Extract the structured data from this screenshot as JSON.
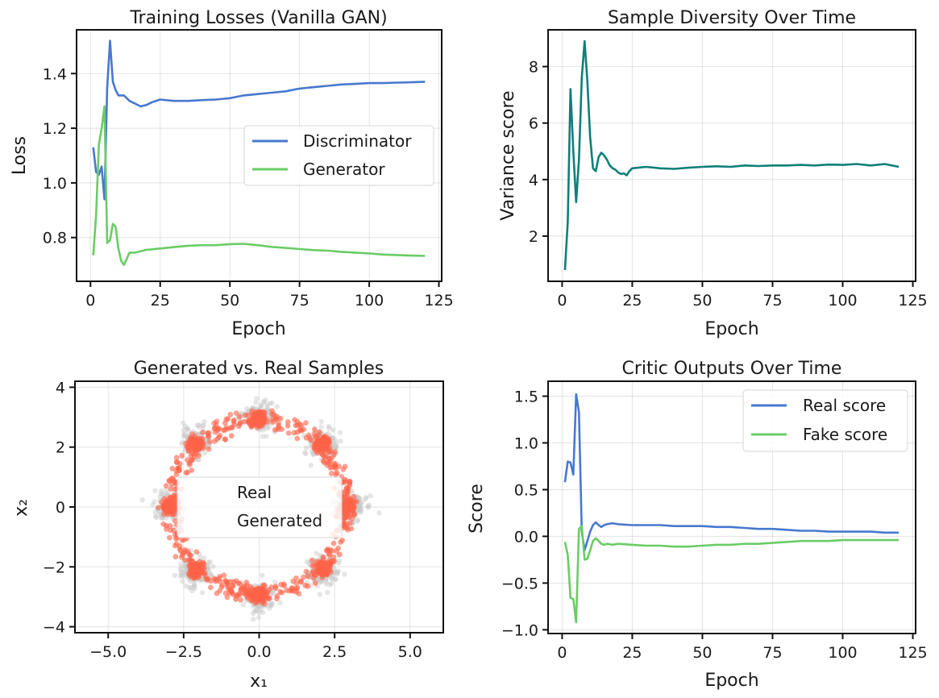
{
  "colors": {
    "discriminator": "#4878cf",
    "generator": "#6acc65",
    "diversity": "#0e7f7a",
    "real_pts": "#c8c8c8",
    "generated_pts": "#ff6347"
  },
  "chart_data": [
    {
      "type": "line",
      "title": "Training Losses  (Vanilla GAN)",
      "xlabel": "Epoch",
      "ylabel": "Loss",
      "xlim": [
        -5,
        126
      ],
      "ylim": [
        0.64,
        1.56
      ],
      "xticks": [
        0,
        25,
        50,
        75,
        100,
        125
      ],
      "yticks": [
        0.8,
        1.0,
        1.2,
        1.4
      ],
      "grid": true,
      "legend_position": "center-right",
      "series": [
        {
          "name": "Discriminator",
          "color": "#4878cf",
          "x": [
            1,
            2,
            3,
            4,
            5,
            6,
            7,
            8,
            9,
            10,
            12,
            14,
            16,
            18,
            20,
            22,
            25,
            30,
            35,
            40,
            45,
            50,
            55,
            60,
            65,
            70,
            75,
            80,
            85,
            90,
            95,
            100,
            105,
            110,
            115,
            120
          ],
          "y": [
            1.13,
            1.04,
            1.03,
            1.06,
            0.94,
            1.35,
            1.52,
            1.37,
            1.34,
            1.32,
            1.32,
            1.3,
            1.29,
            1.28,
            1.285,
            1.295,
            1.305,
            1.3,
            1.3,
            1.303,
            1.305,
            1.31,
            1.32,
            1.325,
            1.33,
            1.335,
            1.345,
            1.35,
            1.355,
            1.36,
            1.362,
            1.365,
            1.365,
            1.367,
            1.368,
            1.37
          ]
        },
        {
          "name": "Generator",
          "color": "#6acc65",
          "x": [
            1,
            2,
            3,
            4,
            5,
            6,
            7,
            8,
            9,
            10,
            11,
            12,
            14,
            16,
            18,
            20,
            25,
            30,
            35,
            40,
            45,
            50,
            55,
            60,
            65,
            70,
            75,
            80,
            85,
            90,
            95,
            100,
            105,
            110,
            115,
            120
          ],
          "y": [
            0.735,
            0.88,
            1.14,
            1.2,
            1.28,
            0.78,
            0.79,
            0.85,
            0.84,
            0.76,
            0.715,
            0.7,
            0.745,
            0.745,
            0.75,
            0.755,
            0.76,
            0.765,
            0.77,
            0.772,
            0.772,
            0.776,
            0.777,
            0.772,
            0.766,
            0.762,
            0.758,
            0.754,
            0.752,
            0.748,
            0.745,
            0.742,
            0.738,
            0.736,
            0.734,
            0.733
          ]
        }
      ]
    },
    {
      "type": "line",
      "title": "Sample Diversity Over Time",
      "xlabel": "Epoch",
      "ylabel": "Variance score",
      "xlim": [
        -5,
        126
      ],
      "ylim": [
        0.4,
        9.3
      ],
      "xticks": [
        0,
        25,
        50,
        75,
        100,
        125
      ],
      "yticks": [
        2,
        4,
        6,
        8
      ],
      "grid": true,
      "series": [
        {
          "name": "",
          "color": "#0e7f7a",
          "x": [
            1,
            2,
            3,
            4,
            5,
            6,
            7,
            8,
            9,
            10,
            11,
            12,
            13,
            14,
            15,
            16,
            17,
            18,
            19,
            20,
            21,
            22,
            23,
            24,
            25,
            30,
            35,
            40,
            45,
            50,
            55,
            60,
            65,
            70,
            75,
            80,
            85,
            90,
            95,
            100,
            105,
            110,
            115,
            120
          ],
          "y": [
            0.8,
            2.5,
            7.2,
            5.0,
            3.2,
            4.7,
            7.6,
            8.9,
            7.5,
            5.5,
            4.4,
            4.3,
            4.8,
            4.95,
            4.85,
            4.7,
            4.5,
            4.4,
            4.35,
            4.25,
            4.2,
            4.22,
            4.15,
            4.3,
            4.4,
            4.45,
            4.4,
            4.38,
            4.42,
            4.45,
            4.47,
            4.45,
            4.5,
            4.48,
            4.5,
            4.5,
            4.52,
            4.5,
            4.53,
            4.52,
            4.55,
            4.5,
            4.55,
            4.45
          ]
        }
      ]
    },
    {
      "type": "scatter",
      "title": "Generated vs. Real Samples",
      "xlabel": "x₁",
      "ylabel": "x₂",
      "xlim": [
        -6.1,
        6.1
      ],
      "ylim": [
        -4.2,
        4.2
      ],
      "xticks": [
        -5.0,
        -2.5,
        0.0,
        2.5,
        5.0
      ],
      "yticks": [
        -4,
        -2,
        0,
        2,
        4
      ],
      "grid": true,
      "legend_position": "center",
      "series": [
        {
          "name": "Real",
          "color": "#c8c8c8",
          "mixture": {
            "components": 8,
            "radius": 3.0,
            "std": 0.2,
            "count": 1200
          }
        },
        {
          "name": "Generated",
          "color": "#ff6347",
          "mixture": {
            "components": 8,
            "radius": 2.95,
            "std": 0.12,
            "ring_count": 520,
            "cluster_count": 700
          }
        }
      ]
    },
    {
      "type": "line",
      "title": "Critic Outputs Over Time",
      "xlabel": "Epoch",
      "ylabel": "Score",
      "xlim": [
        -5,
        126
      ],
      "ylim": [
        -1.04,
        1.66
      ],
      "xticks": [
        0,
        25,
        50,
        75,
        100,
        125
      ],
      "yticks": [
        -1.0,
        -0.5,
        0.0,
        0.5,
        1.0,
        1.5
      ],
      "grid": true,
      "legend_position": "top-right",
      "series": [
        {
          "name": "Real score",
          "color": "#4878cf",
          "x": [
            1,
            2,
            3,
            4,
            5,
            6,
            7,
            8,
            9,
            10,
            11,
            12,
            13,
            14,
            15,
            16,
            18,
            20,
            25,
            30,
            35,
            40,
            45,
            50,
            55,
            60,
            65,
            70,
            75,
            80,
            85,
            90,
            95,
            100,
            105,
            110,
            115,
            120
          ],
          "y": [
            0.58,
            0.8,
            0.79,
            0.66,
            1.52,
            1.33,
            0.05,
            -0.15,
            -0.05,
            0.05,
            0.12,
            0.15,
            0.12,
            0.1,
            0.12,
            0.13,
            0.14,
            0.13,
            0.12,
            0.12,
            0.12,
            0.11,
            0.11,
            0.11,
            0.1,
            0.1,
            0.09,
            0.08,
            0.08,
            0.07,
            0.06,
            0.06,
            0.05,
            0.05,
            0.05,
            0.05,
            0.04,
            0.04
          ]
        },
        {
          "name": "Fake score",
          "color": "#6acc65",
          "x": [
            1,
            2,
            3,
            4,
            5,
            6,
            7,
            8,
            9,
            10,
            11,
            12,
            13,
            14,
            15,
            16,
            18,
            20,
            25,
            30,
            35,
            40,
            45,
            50,
            55,
            60,
            65,
            70,
            75,
            80,
            85,
            90,
            95,
            100,
            105,
            110,
            115,
            120
          ],
          "y": [
            -0.06,
            -0.2,
            -0.66,
            -0.67,
            -0.92,
            0.08,
            0.11,
            -0.25,
            -0.24,
            -0.15,
            -0.05,
            -0.02,
            -0.05,
            -0.08,
            -0.09,
            -0.08,
            -0.09,
            -0.08,
            -0.09,
            -0.1,
            -0.1,
            -0.11,
            -0.11,
            -0.1,
            -0.09,
            -0.09,
            -0.08,
            -0.08,
            -0.07,
            -0.06,
            -0.05,
            -0.05,
            -0.05,
            -0.04,
            -0.04,
            -0.04,
            -0.04,
            -0.04
          ]
        }
      ]
    }
  ]
}
